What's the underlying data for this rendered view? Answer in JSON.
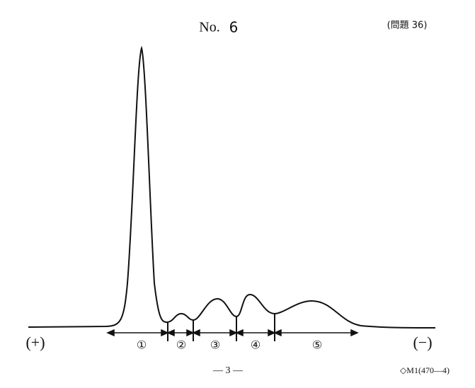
{
  "header": {
    "prefix": "No.",
    "number": "6",
    "question": "(問題 36)"
  },
  "figure": {
    "anode": "(+)",
    "cathode": "(−)",
    "fractions": [
      "①",
      "②",
      "③",
      "④",
      "⑤"
    ]
  },
  "footer": {
    "page": "— 3 —",
    "code": "◇M1(470—4)"
  }
}
